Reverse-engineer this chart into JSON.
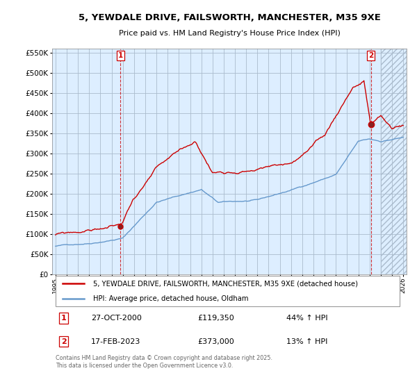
{
  "title": "5, YEWDALE DRIVE, FAILSWORTH, MANCHESTER, M35 9XE",
  "subtitle": "Price paid vs. HM Land Registry's House Price Index (HPI)",
  "legend_label_red": "5, YEWDALE DRIVE, FAILSWORTH, MANCHESTER, M35 9XE (detached house)",
  "legend_label_blue": "HPI: Average price, detached house, Oldham",
  "marker1_date": "27-OCT-2000",
  "marker1_price": 119350,
  "marker1_info": "44% ↑ HPI",
  "marker2_date": "17-FEB-2023",
  "marker2_price": 373000,
  "marker2_info": "13% ↑ HPI",
  "copyright_text": "Contains HM Land Registry data © Crown copyright and database right 2025.\nThis data is licensed under the Open Government Licence v3.0.",
  "red_color": "#cc0000",
  "blue_color": "#6699cc",
  "background_color": "#ffffff",
  "chart_bg_color": "#ddeeff",
  "grid_color": "#aabbcc",
  "ylim": [
    0,
    560000
  ],
  "xlim_start": 1994.7,
  "xlim_end": 2026.3,
  "hatch_start": 2024.0
}
